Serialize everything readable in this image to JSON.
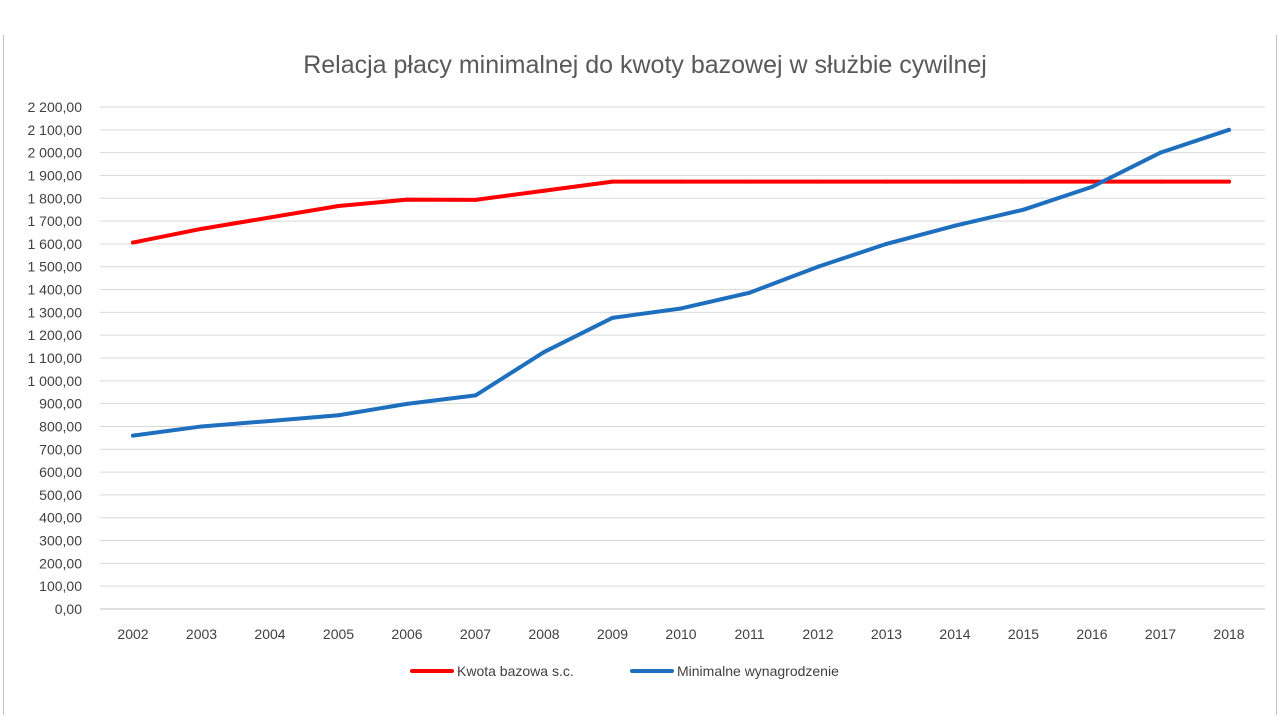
{
  "chart_data": {
    "type": "line",
    "title": "Relacja płacy minimalnej do kwoty bazowej w służbie cywilnej",
    "xlabel": "",
    "ylabel": "",
    "categories": [
      "2002",
      "2003",
      "2004",
      "2005",
      "2006",
      "2007",
      "2008",
      "2009",
      "2010",
      "2011",
      "2012",
      "2013",
      "2014",
      "2015",
      "2016",
      "2017",
      "2018"
    ],
    "ylim": [
      0,
      2200
    ],
    "ystep": 100,
    "ytick_labels": [
      "0,00",
      "100,00",
      "200,00",
      "300,00",
      "400,00",
      "500,00",
      "600,00",
      "700,00",
      "800,00",
      "900,00",
      "1 000,00",
      "1 100,00",
      "1 200,00",
      "1 300,00",
      "1 400,00",
      "1 500,00",
      "1 600,00",
      "1 700,00",
      "1 800,00",
      "1 900,00",
      "2 000,00",
      "2 100,00",
      "2 200,00"
    ],
    "grid": true,
    "legend_position": "bottom",
    "series": [
      {
        "name": "Kwota bazowa s.c.",
        "color": "#ff0000",
        "values": [
          1606,
          1666,
          1716,
          1766,
          1794,
          1793,
          1833,
          1873,
          1873,
          1873,
          1873,
          1873,
          1873,
          1873,
          1873,
          1873,
          1873
        ]
      },
      {
        "name": "Minimalne wynagrodzenie",
        "color": "#1f6fbf",
        "values": [
          760,
          800,
          824,
          849,
          899,
          936,
          1126,
          1276,
          1317,
          1386,
          1500,
          1600,
          1680,
          1750,
          1850,
          2000,
          2100
        ]
      }
    ]
  }
}
